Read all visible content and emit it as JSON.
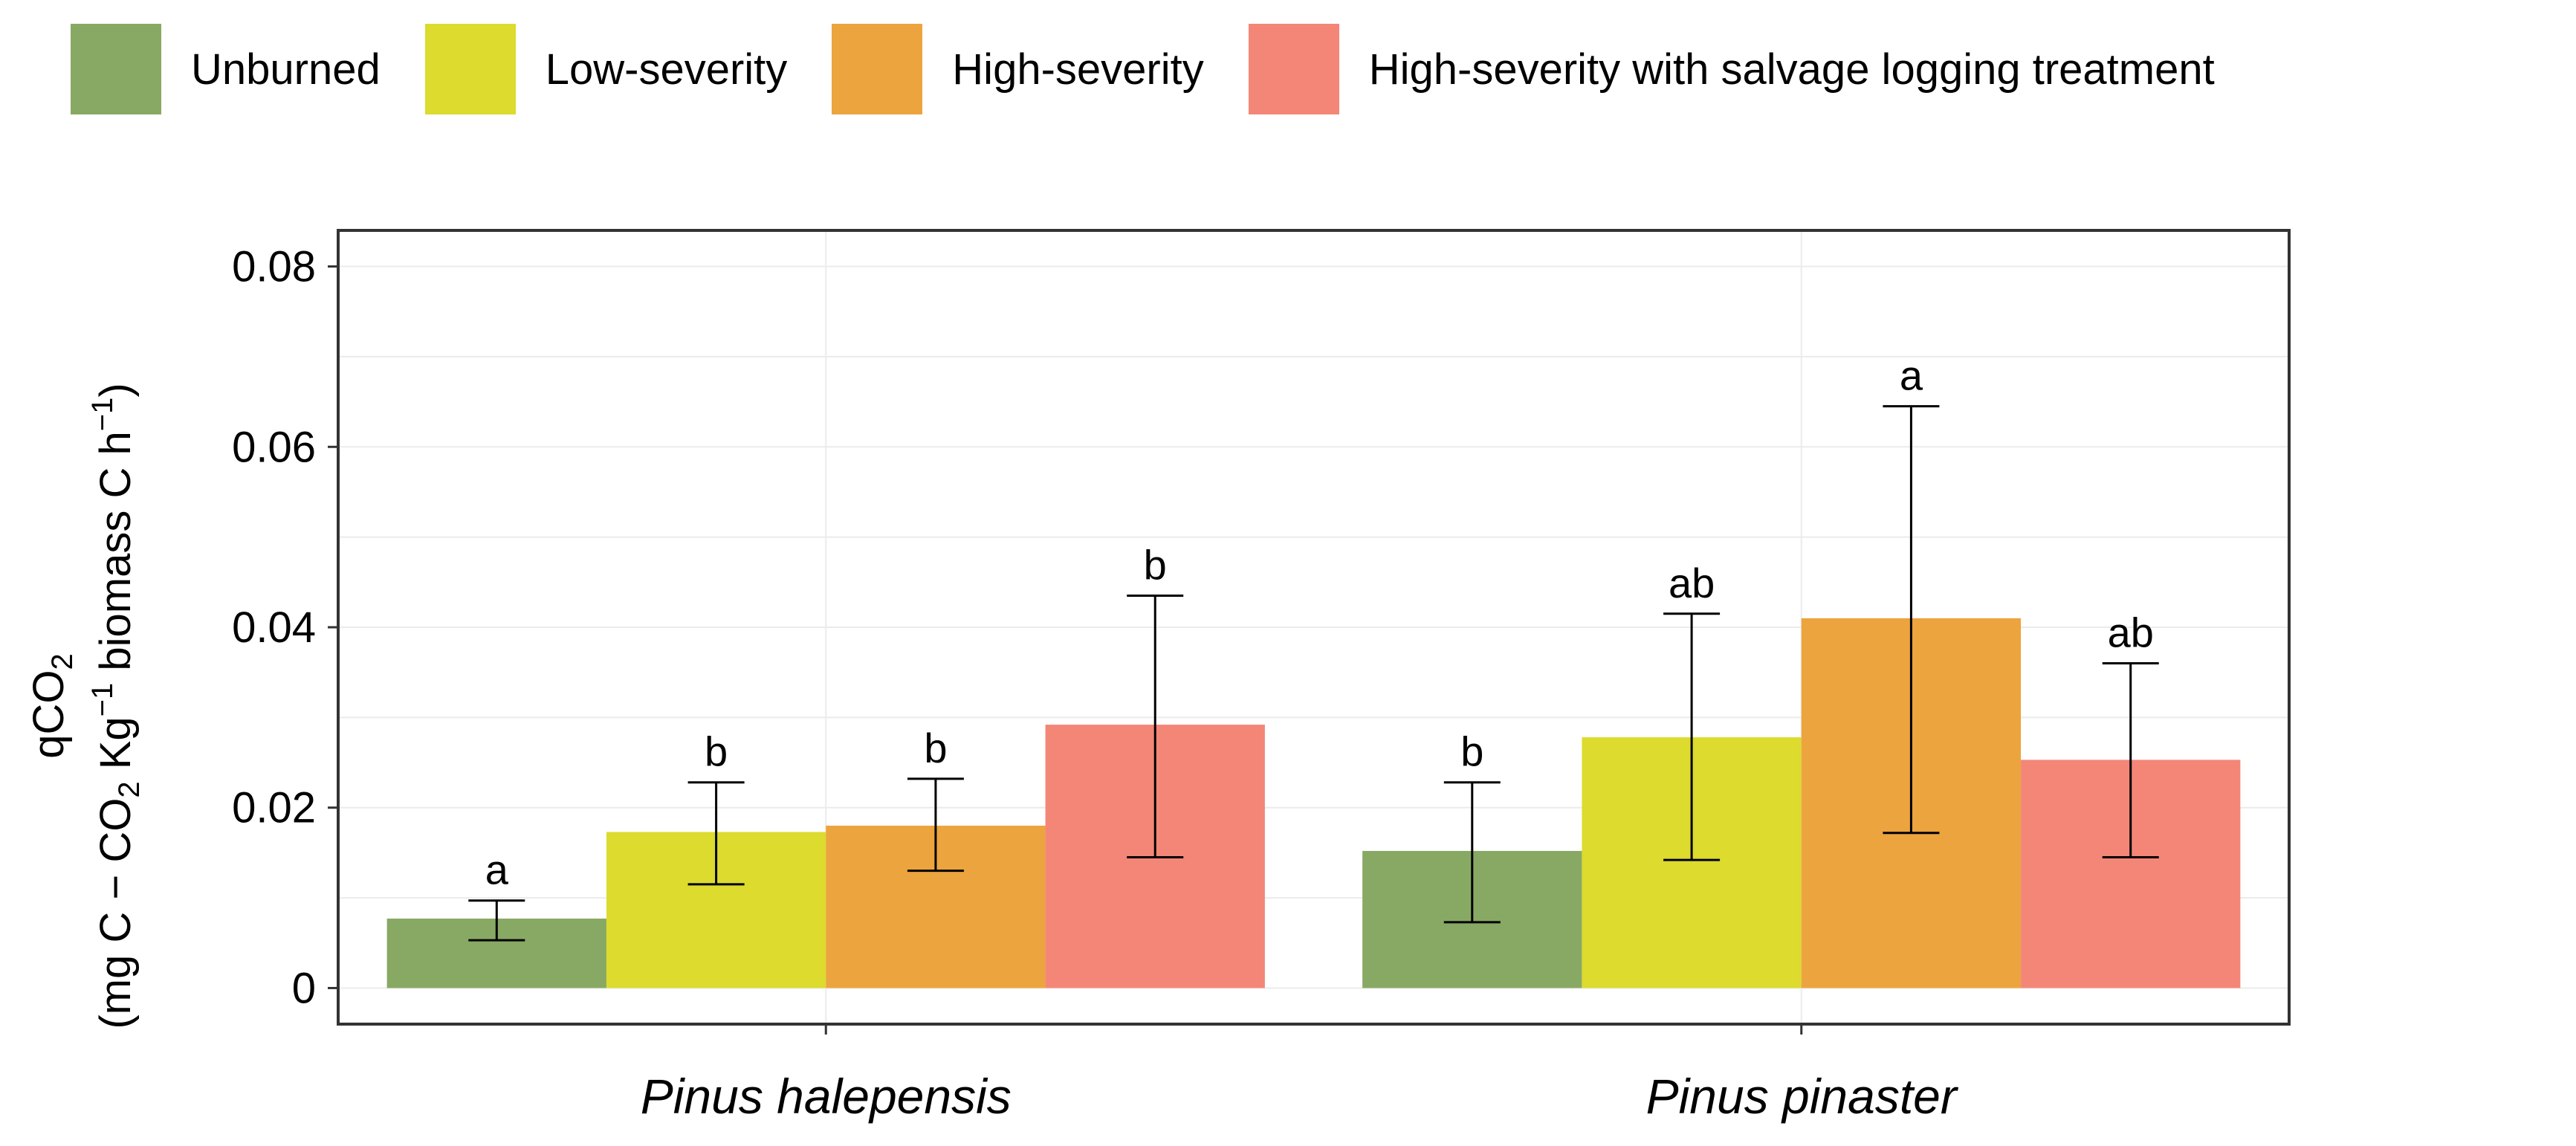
{
  "chart_data": {
    "type": "bar",
    "title": "",
    "xlabel": "",
    "ylabel": {
      "line1_main": "qCO",
      "line1_sub": "2",
      "line2_a": "(mg C − CO",
      "line2_sub": "2",
      "line2_b": " Kg",
      "line2_sup1": "−1",
      "line2_c": " biomass C h",
      "line2_sup2": "−1",
      "line2_d": ")"
    },
    "ylim": [
      -0.004,
      0.084
    ],
    "yticks": [
      0,
      0.02,
      0.04,
      0.06,
      0.08
    ],
    "ytick_labels": [
      "0",
      "0.02",
      "0.04",
      "0.06",
      "0.08"
    ],
    "categories": [
      "Pinus halepensis",
      "Pinus pinaster"
    ],
    "series": [
      {
        "name": "Unburned",
        "color": "#88A964",
        "values": [
          0.0077,
          0.0152
        ],
        "err_low": [
          0.0053,
          0.0073
        ],
        "err_high": [
          0.0097,
          0.0228
        ],
        "letters": [
          "a",
          "b"
        ]
      },
      {
        "name": "Low-severity",
        "color": "#DCDB2E",
        "values": [
          0.0173,
          0.0278
        ],
        "err_low": [
          0.0115,
          0.0142
        ],
        "err_high": [
          0.0228,
          0.0415
        ],
        "letters": [
          "b",
          "ab"
        ]
      },
      {
        "name": "High-severity",
        "color": "#ECA43E",
        "values": [
          0.018,
          0.041
        ],
        "err_low": [
          0.013,
          0.0172
        ],
        "err_high": [
          0.0232,
          0.0645
        ],
        "letters": [
          "b",
          "a"
        ]
      },
      {
        "name": "High-severity with salvage logging treatment",
        "color": "#F48677",
        "values": [
          0.0292,
          0.0253
        ],
        "err_low": [
          0.0145,
          0.0145
        ],
        "err_high": [
          0.0435,
          0.036
        ],
        "letters": [
          "b",
          "ab"
        ]
      }
    ],
    "legend_position": "top",
    "grid": true
  }
}
